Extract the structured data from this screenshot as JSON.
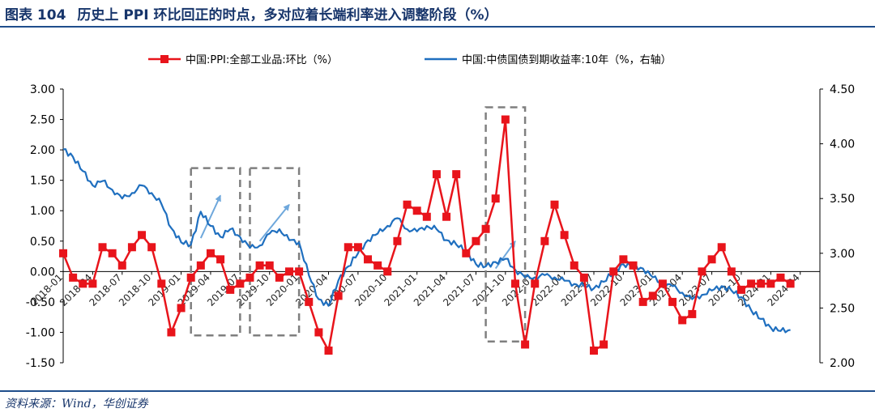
{
  "header": {
    "figure_no": "图表 104",
    "title": "历史上 PPI 环比回正的时点，多对应着长端利率进入调整阶段（%）"
  },
  "footer": {
    "source": "资料来源：Wind，华创证券"
  },
  "colors": {
    "ppi": "#e8141b",
    "bond": "#1f6fbf",
    "box": "#7f7f7f",
    "arrow": "#6fa8dc"
  },
  "chart_data": {
    "type": "line",
    "legend": [
      {
        "name": "中国:PPI:全部工业品:环比（%）",
        "style": "line-square-marker",
        "axis": "left"
      },
      {
        "name": "中国:中债国债到期收益率:10年（%，右轴）",
        "style": "line",
        "axis": "right"
      }
    ],
    "left_axis": {
      "min": -1.5,
      "max": 3.0,
      "step": 0.5,
      "ticks": [
        "-1.50",
        "-1.00",
        "-0.50",
        "0.00",
        "0.50",
        "1.00",
        "1.50",
        "2.00",
        "2.50",
        "3.00"
      ]
    },
    "right_axis": {
      "min": 2.0,
      "max": 4.5,
      "step": 0.5,
      "ticks": [
        "2.00",
        "2.50",
        "3.00",
        "3.50",
        "4.00",
        "4.50"
      ]
    },
    "x_range": [
      "2018-01",
      "2024-06"
    ],
    "x_ticks": [
      "2018-01",
      "2018-04",
      "2018-07",
      "2018-10",
      "2019-01",
      "2019-04",
      "2019-07",
      "2019-10",
      "2020-01",
      "2020-04",
      "2020-07",
      "2020-10",
      "2021-01",
      "2021-04",
      "2021-07",
      "2021-10",
      "2022-01",
      "2022-04",
      "2022-07",
      "2022-10",
      "2023-01",
      "2023-04",
      "2023-07",
      "2023-10",
      "2024-01",
      "2024-04"
    ],
    "series": [
      {
        "name": "中国:PPI:全部工业品:环比",
        "start": "2018-01",
        "values": [
          0.3,
          -0.1,
          -0.2,
          -0.2,
          0.4,
          0.3,
          0.1,
          0.4,
          0.6,
          0.4,
          -0.2,
          -1.0,
          -0.6,
          -0.1,
          0.1,
          0.3,
          0.2,
          -0.3,
          -0.2,
          -0.1,
          0.1,
          0.1,
          -0.1,
          0.0,
          0.0,
          -0.5,
          -1.0,
          -1.3,
          -0.4,
          0.4,
          0.4,
          0.2,
          0.1,
          0.0,
          0.5,
          1.1,
          1.0,
          0.9,
          1.6,
          0.9,
          1.6,
          0.3,
          0.5,
          0.7,
          1.2,
          2.5,
          -0.2,
          -1.2,
          -0.2,
          0.5,
          1.1,
          0.6,
          0.1,
          -0.1,
          -1.3,
          -1.2,
          0.0,
          0.2,
          0.1,
          -0.5,
          -0.4,
          -0.2,
          -0.5,
          -0.8,
          -0.7,
          0.0,
          0.2,
          0.4,
          0.0,
          -0.3,
          -0.2,
          -0.2,
          -0.2,
          -0.1,
          -0.2
        ]
      },
      {
        "name": "中国:中债国债到期收益率:10年",
        "start": "2018-01",
        "values": [
          3.95,
          3.88,
          3.75,
          3.62,
          3.66,
          3.58,
          3.5,
          3.55,
          3.62,
          3.55,
          3.45,
          3.23,
          3.1,
          3.08,
          3.38,
          3.25,
          3.15,
          3.22,
          3.15,
          3.05,
          3.07,
          3.18,
          3.22,
          3.12,
          3.1,
          2.8,
          2.58,
          2.52,
          2.75,
          2.88,
          3.0,
          3.12,
          3.18,
          3.25,
          3.32,
          3.22,
          3.2,
          3.25,
          3.22,
          3.12,
          3.08,
          3.02,
          2.9,
          2.88,
          2.92,
          2.95,
          2.85,
          2.78,
          2.78,
          2.8,
          2.78,
          2.75,
          2.72,
          2.7,
          2.68,
          2.74,
          2.83,
          2.9,
          2.88,
          2.86,
          2.78,
          2.72,
          2.7,
          2.64,
          2.58,
          2.62,
          2.66,
          2.7,
          2.66,
          2.6,
          2.48,
          2.4,
          2.32,
          2.29,
          2.3
        ]
      }
    ],
    "annotations": [
      {
        "type": "dashed-box",
        "x_from": "2019-02",
        "x_to": "2019-07",
        "y_from": -1.05,
        "y_to": 1.7
      },
      {
        "type": "dashed-box",
        "x_from": "2019-08",
        "x_to": "2020-01",
        "y_from": -1.05,
        "y_to": 1.7
      },
      {
        "type": "dashed-box",
        "x_from": "2021-08",
        "x_to": "2021-12",
        "y_from": -1.15,
        "y_to": 2.7
      },
      {
        "type": "arrow",
        "from": [
          "2019-03",
          0.55
        ],
        "to": [
          "2019-05",
          1.25
        ]
      },
      {
        "type": "arrow",
        "from": [
          "2019-09",
          0.5
        ],
        "to": [
          "2019-12",
          1.1
        ]
      },
      {
        "type": "arrow",
        "from": [
          "2021-09",
          0.05
        ],
        "to": [
          "2021-11",
          0.5
        ]
      }
    ]
  }
}
